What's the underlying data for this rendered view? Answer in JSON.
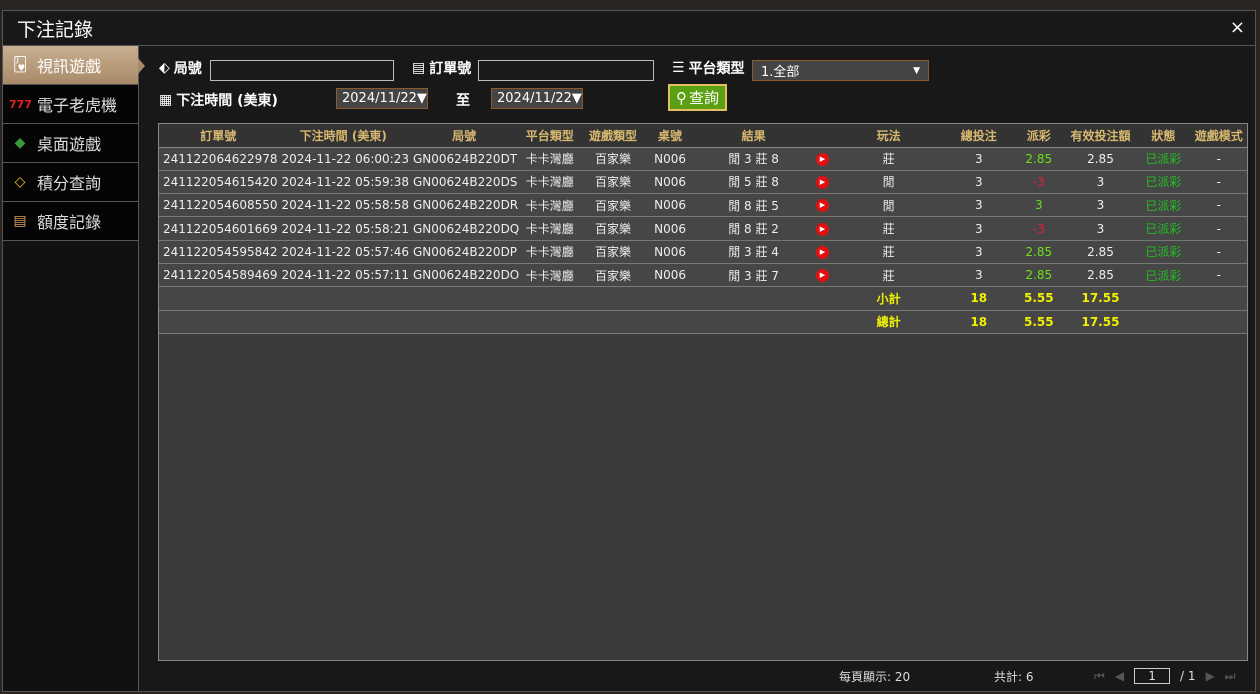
{
  "window": {
    "title": "下注記錄",
    "close": "×"
  },
  "sidebar": {
    "items": [
      {
        "label": "視訊遊戲",
        "icon": "playing-cards-icon",
        "active": true
      },
      {
        "label": "電子老虎機",
        "icon": "slot-777-icon"
      },
      {
        "label": "桌面遊戲",
        "icon": "table-chips-icon"
      },
      {
        "label": "積分查詢",
        "icon": "diamond-icon"
      },
      {
        "label": "額度記錄",
        "icon": "document-icon"
      }
    ]
  },
  "filters": {
    "round_label": "局號",
    "round_value": "",
    "order_label": "訂單號",
    "order_value": "",
    "platform_label": "平台類型",
    "platform_value": "1.全部",
    "time_label": "下注時間 (美東)",
    "date_from": "2024/11/22▼",
    "to_label": "至",
    "date_to": "2024/11/22▼",
    "search_label": "查詢"
  },
  "table": {
    "headers": [
      "訂單號",
      "下注時間 (美東)",
      "局號",
      "平台類型",
      "遊戲類型",
      "桌號",
      "結果",
      "",
      "玩法",
      "總投注",
      "派彩",
      "有效投注額",
      "狀態",
      "遊戲模式"
    ],
    "rows": [
      [
        "241122064622978",
        "2024-11-22 06:00:23",
        "GN00624B220DT",
        "卡卡灣廳",
        "百家樂",
        "N006",
        "閒 3 莊 8",
        "",
        "莊",
        "3",
        "2.85",
        "2.85",
        "已派彩",
        "-"
      ],
      [
        "241122054615420",
        "2024-11-22 05:59:38",
        "GN00624B220DS",
        "卡卡灣廳",
        "百家樂",
        "N006",
        "閒 5 莊 8",
        "",
        "閒",
        "3",
        "-3",
        "3",
        "已派彩",
        "-"
      ],
      [
        "241122054608550",
        "2024-11-22 05:58:58",
        "GN00624B220DR",
        "卡卡灣廳",
        "百家樂",
        "N006",
        "閒 8 莊 5",
        "",
        "閒",
        "3",
        "3",
        "3",
        "已派彩",
        "-"
      ],
      [
        "241122054601669",
        "2024-11-22 05:58:21",
        "GN00624B220DQ",
        "卡卡灣廳",
        "百家樂",
        "N006",
        "閒 8 莊 2",
        "",
        "莊",
        "3",
        "-3",
        "3",
        "已派彩",
        "-"
      ],
      [
        "241122054595842",
        "2024-11-22 05:57:46",
        "GN00624B220DP",
        "卡卡灣廳",
        "百家樂",
        "N006",
        "閒 3 莊 4",
        "",
        "莊",
        "3",
        "2.85",
        "2.85",
        "已派彩",
        "-"
      ],
      [
        "241122054589469",
        "2024-11-22 05:57:11",
        "GN00624B220DO",
        "卡卡灣廳",
        "百家樂",
        "N006",
        "閒 3 莊 7",
        "",
        "莊",
        "3",
        "2.85",
        "2.85",
        "已派彩",
        "-"
      ]
    ],
    "subtotal": {
      "label": "小計",
      "total": "18",
      "payout": "5.55",
      "valid": "17.55"
    },
    "grandtotal": {
      "label": "總計",
      "total": "18",
      "payout": "5.55",
      "valid": "17.55"
    }
  },
  "footer": {
    "per_page": "每頁顯示: 20",
    "total": "共計: 6",
    "page": "1",
    "pages": "/  1"
  },
  "colors": {
    "positive": "#6de018",
    "negative": "#e0203a",
    "status": "#20c020",
    "totals": "#f0f000",
    "header": "#d7b870",
    "search_button": "#5aa012"
  }
}
